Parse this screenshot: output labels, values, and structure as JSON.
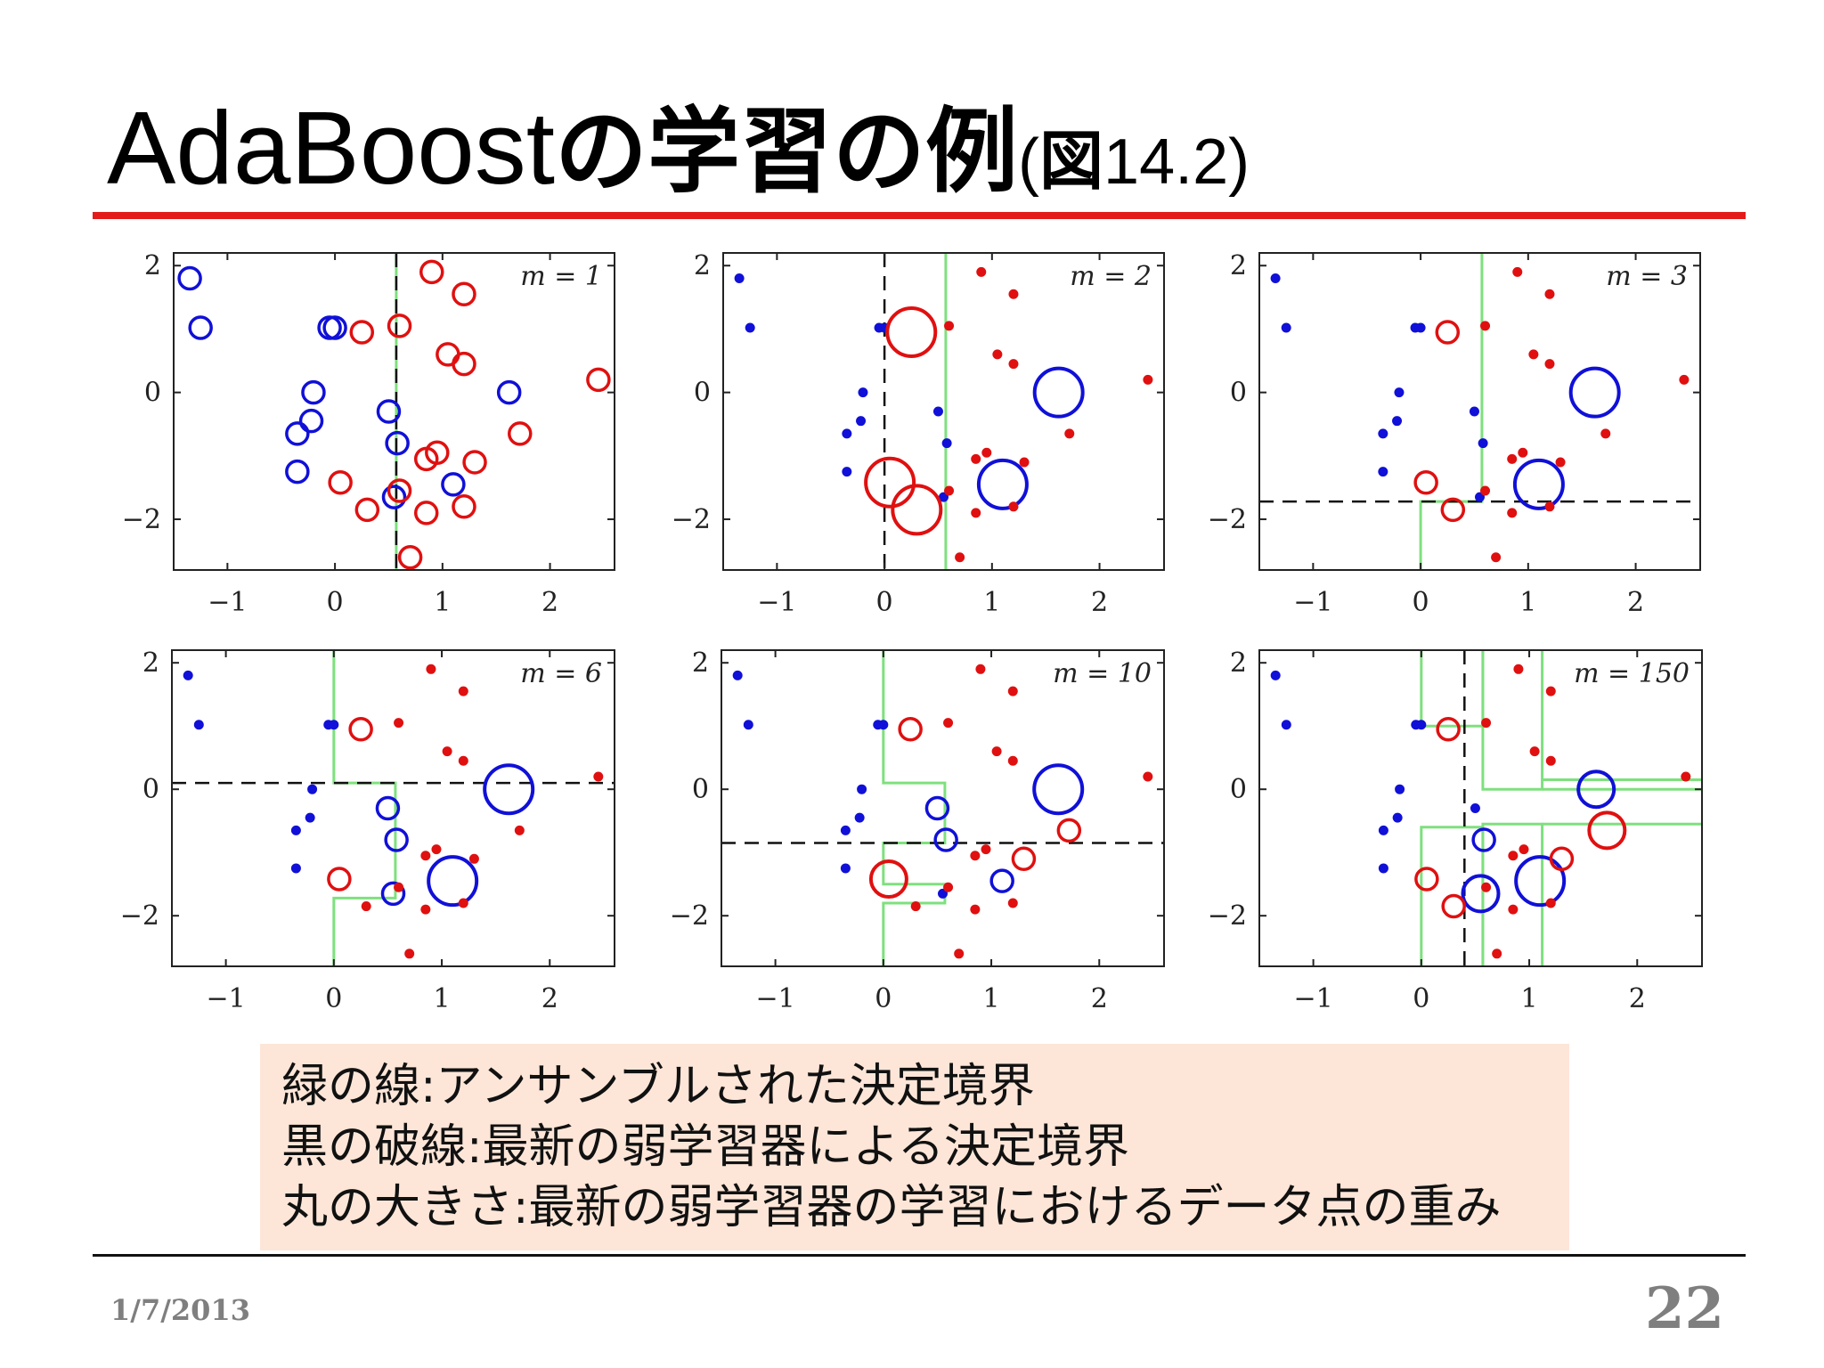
{
  "title": {
    "part1": "AdaBoost",
    "part2": "の学習の例",
    "part3": "(",
    "part4": "図",
    "part5": "14.2)"
  },
  "chart_data": [
    {
      "type": "scatter",
      "annotation": "m = 1",
      "xlim": [
        -1.5,
        2.6
      ],
      "ylim": [
        -2.8,
        2.2
      ],
      "xticks": [
        "−1",
        "0",
        "1",
        "2"
      ],
      "yticks": [
        "2",
        "0",
        "−2"
      ]
    },
    {
      "type": "scatter",
      "annotation": "m = 2",
      "xlim": [
        -1.5,
        2.6
      ],
      "ylim": [
        -2.8,
        2.2
      ],
      "xticks": [
        "−1",
        "0",
        "1",
        "2"
      ],
      "yticks": [
        "2",
        "0",
        "−2"
      ]
    },
    {
      "type": "scatter",
      "annotation": "m = 3",
      "xlim": [
        -1.5,
        2.6
      ],
      "ylim": [
        -2.8,
        2.2
      ],
      "xticks": [
        "−1",
        "0",
        "1",
        "2"
      ],
      "yticks": [
        "2",
        "0",
        "−2"
      ]
    },
    {
      "type": "scatter",
      "annotation": "m = 6",
      "xlim": [
        -1.5,
        2.6
      ],
      "ylim": [
        -2.8,
        2.2
      ],
      "xticks": [
        "−1",
        "0",
        "1",
        "2"
      ],
      "yticks": [
        "2",
        "0",
        "−2"
      ]
    },
    {
      "type": "scatter",
      "annotation": "m = 10",
      "xlim": [
        -1.5,
        2.6
      ],
      "ylim": [
        -2.8,
        2.2
      ],
      "xticks": [
        "−1",
        "0",
        "1",
        "2"
      ],
      "yticks": [
        "2",
        "0",
        "−2"
      ]
    },
    {
      "type": "scatter",
      "annotation": "m = 150",
      "xlim": [
        -1.5,
        2.6
      ],
      "ylim": [
        -2.8,
        2.2
      ],
      "xticks": [
        "−1",
        "0",
        "1",
        "2"
      ],
      "yticks": [
        "2",
        "0",
        "−2"
      ]
    }
  ],
  "points": [
    {
      "x": -1.35,
      "y": 1.8,
      "c": "b",
      "w": [
        2,
        1,
        1,
        1,
        1,
        1
      ]
    },
    {
      "x": -1.25,
      "y": 1.02,
      "c": "b",
      "w": [
        2,
        1,
        1,
        1,
        1,
        1
      ]
    },
    {
      "x": -0.05,
      "y": 1.02,
      "c": "b",
      "w": [
        2,
        1,
        1,
        1,
        1,
        1
      ]
    },
    {
      "x": 0.0,
      "y": 1.02,
      "c": "b",
      "w": [
        2,
        1,
        1,
        1,
        1,
        1
      ]
    },
    {
      "x": -0.2,
      "y": 0.0,
      "c": "b",
      "w": [
        2,
        1,
        1,
        1,
        1,
        1
      ]
    },
    {
      "x": -0.22,
      "y": -0.45,
      "c": "b",
      "w": [
        2,
        1,
        1,
        1,
        1,
        1
      ]
    },
    {
      "x": -0.35,
      "y": -0.65,
      "c": "b",
      "w": [
        2,
        1,
        1,
        1,
        1,
        1
      ]
    },
    {
      "x": -0.35,
      "y": -1.25,
      "c": "b",
      "w": [
        2,
        1,
        1,
        1,
        1,
        1
      ]
    },
    {
      "x": 0.5,
      "y": -0.3,
      "c": "b",
      "w": [
        2,
        1,
        1,
        2,
        2,
        1
      ]
    },
    {
      "x": 0.58,
      "y": -0.8,
      "c": "b",
      "w": [
        2,
        1,
        1,
        2,
        2,
        2
      ]
    },
    {
      "x": 0.55,
      "y": -1.65,
      "c": "b",
      "w": [
        2,
        1,
        1,
        2,
        1,
        3
      ]
    },
    {
      "x": 1.1,
      "y": -1.45,
      "c": "b",
      "w": [
        2,
        4,
        4,
        4,
        2,
        4
      ]
    },
    {
      "x": 1.62,
      "y": 0.0,
      "c": "b",
      "w": [
        2,
        4,
        4,
        4,
        4,
        3
      ]
    },
    {
      "x": 0.9,
      "y": 1.9,
      "c": "r",
      "w": [
        2,
        1,
        1,
        1,
        1,
        1
      ]
    },
    {
      "x": 1.2,
      "y": 1.55,
      "c": "r",
      "w": [
        2,
        1,
        1,
        1,
        1,
        1
      ]
    },
    {
      "x": 0.25,
      "y": 0.95,
      "c": "r",
      "w": [
        2,
        4,
        2,
        2,
        2,
        2
      ]
    },
    {
      "x": 0.6,
      "y": 1.05,
      "c": "r",
      "w": [
        2,
        1,
        1,
        1,
        1,
        1
      ]
    },
    {
      "x": 1.05,
      "y": 0.6,
      "c": "r",
      "w": [
        2,
        1,
        1,
        1,
        1,
        1
      ]
    },
    {
      "x": 1.2,
      "y": 0.45,
      "c": "r",
      "w": [
        2,
        1,
        1,
        1,
        1,
        1
      ]
    },
    {
      "x": 2.45,
      "y": 0.2,
      "c": "r",
      "w": [
        2,
        1,
        1,
        1,
        1,
        1
      ]
    },
    {
      "x": 1.72,
      "y": -0.65,
      "c": "r",
      "w": [
        2,
        1,
        1,
        1,
        2,
        3
      ]
    },
    {
      "x": 0.85,
      "y": -1.05,
      "c": "r",
      "w": [
        2,
        1,
        1,
        1,
        1,
        1
      ]
    },
    {
      "x": 0.95,
      "y": -0.95,
      "c": "r",
      "w": [
        2,
        1,
        1,
        1,
        1,
        1
      ]
    },
    {
      "x": 1.3,
      "y": -1.1,
      "c": "r",
      "w": [
        2,
        1,
        1,
        1,
        2,
        2
      ]
    },
    {
      "x": 0.05,
      "y": -1.42,
      "c": "r",
      "w": [
        2,
        4,
        2,
        2,
        3,
        2
      ]
    },
    {
      "x": 1.2,
      "y": -1.8,
      "c": "r",
      "w": [
        2,
        1,
        1,
        1,
        1,
        1
      ]
    },
    {
      "x": 0.3,
      "y": -1.85,
      "c": "r",
      "w": [
        2,
        4,
        2,
        1,
        1,
        2
      ]
    },
    {
      "x": 0.85,
      "y": -1.9,
      "c": "r",
      "w": [
        2,
        1,
        1,
        1,
        1,
        1
      ]
    },
    {
      "x": 0.6,
      "y": -1.55,
      "c": "r",
      "w": [
        2,
        1,
        1,
        1,
        1,
        1
      ]
    },
    {
      "x": 0.7,
      "y": -2.6,
      "c": "r",
      "w": [
        2,
        1,
        1,
        1,
        1,
        1
      ]
    }
  ],
  "boundaries": {
    "green": [
      [
        [
          [
            0.57,
            2.2
          ],
          [
            0.57,
            -2.8
          ]
        ]
      ],
      [
        [
          [
            0.57,
            2.2
          ],
          [
            0.57,
            -2.8
          ]
        ]
      ],
      [
        [
          [
            0.57,
            2.2
          ],
          [
            0.57,
            -1.72
          ],
          [
            0.0,
            -1.72
          ],
          [
            0.0,
            -2.8
          ]
        ]
      ],
      [
        [
          [
            0.0,
            2.2
          ],
          [
            0.0,
            0.1
          ],
          [
            0.57,
            0.1
          ],
          [
            0.57,
            -1.72
          ],
          [
            0.0,
            -1.72
          ],
          [
            0.0,
            -2.8
          ]
        ]
      ],
      [
        [
          [
            0.0,
            2.2
          ],
          [
            0.0,
            0.1
          ],
          [
            0.57,
            0.1
          ],
          [
            0.57,
            -0.85
          ],
          [
            0.0,
            -0.85
          ],
          [
            0.0,
            -1.5
          ],
          [
            0.57,
            -1.5
          ],
          [
            0.57,
            -1.8
          ],
          [
            0.0,
            -1.8
          ],
          [
            0.0,
            -2.8
          ]
        ]
      ],
      [
        [
          [
            0.0,
            2.2
          ],
          [
            0.0,
            1.0
          ],
          [
            0.57,
            1.0
          ],
          [
            0.57,
            2.2
          ]
        ],
        [
          [
            0.0,
            -2.8
          ],
          [
            0.0,
            -0.6
          ],
          [
            0.57,
            -0.6
          ],
          [
            0.57,
            -2.8
          ]
        ],
        [
          [
            0.57,
            2.2
          ],
          [
            0.57,
            0.0
          ],
          [
            1.12,
            0.0
          ],
          [
            1.12,
            2.2
          ]
        ],
        [
          [
            0.57,
            -2.8
          ],
          [
            0.57,
            -0.55
          ],
          [
            1.12,
            -0.55
          ],
          [
            1.12,
            -2.8
          ]
        ],
        [
          [
            1.12,
            0.0
          ],
          [
            2.6,
            0.0
          ]
        ],
        [
          [
            1.12,
            -0.55
          ],
          [
            2.6,
            -0.55
          ]
        ],
        [
          [
            1.12,
            0.15
          ],
          [
            2.6,
            0.15
          ]
        ]
      ]
    ],
    "dashed": [
      {
        "v": 0.57
      },
      {
        "v": 0.0
      },
      {
        "h": -1.72
      },
      {
        "h": 0.1
      },
      {
        "h": -0.85
      },
      {
        "v": 0.4
      }
    ]
  },
  "legend": {
    "line1": "緑の線:アンサンブルされた決定境界",
    "line2": "黒の破線:最新の弱学習器による決定境界",
    "line3": "丸の大きさ:最新の弱学習器の学習におけるデータ点の重み"
  },
  "footer": {
    "date": "1/7/2013",
    "page": "22"
  },
  "colors": {
    "red_class": "#e01010",
    "blue_class": "#1010d8",
    "ensemble_boundary": "#7ee07e",
    "title_rule": "#e31b1b"
  }
}
